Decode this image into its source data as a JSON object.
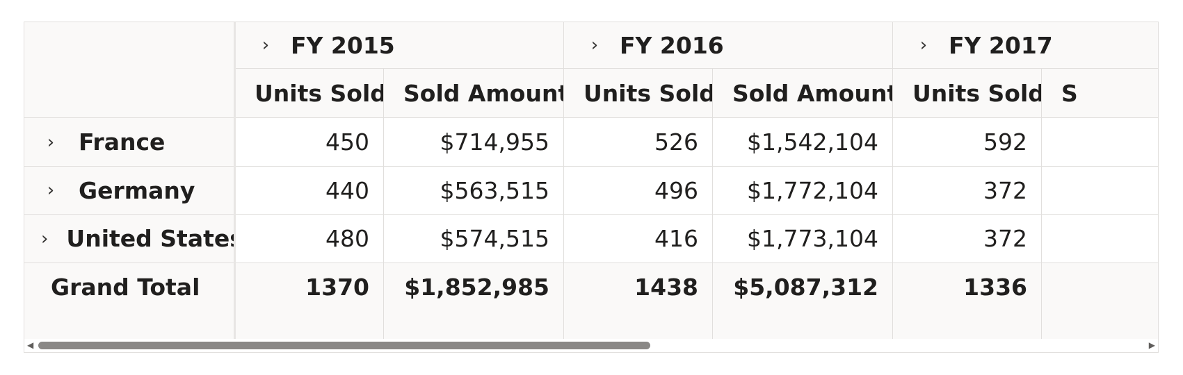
{
  "pivot": {
    "years": [
      {
        "label": "FY 2015"
      },
      {
        "label": "FY 2016"
      },
      {
        "label": "FY 2017"
      }
    ],
    "measures": {
      "units": "Units Sold",
      "amount": "Sold Amount",
      "partial": "S"
    },
    "rows": [
      {
        "label": "France",
        "values": [
          "450",
          "$714,955",
          "526",
          "$1,542,104",
          "592"
        ]
      },
      {
        "label": "Germany",
        "values": [
          "440",
          "$563,515",
          "496",
          "$1,772,104",
          "372"
        ]
      },
      {
        "label": "United States",
        "values": [
          "480",
          "$574,515",
          "416",
          "$1,773,104",
          "372"
        ]
      }
    ],
    "grand_total": {
      "label": "Grand Total",
      "values": [
        "1370",
        "$1,852,985",
        "1438",
        "$5,087,312",
        "1336"
      ]
    }
  },
  "icons": {
    "chevron": "›",
    "scroll_left": "◀",
    "scroll_right": "▶"
  },
  "colors": {
    "header_bg": "#faf9f8",
    "grid_line": "#e1dfdd",
    "scroll_thumb": "#8a8886"
  }
}
